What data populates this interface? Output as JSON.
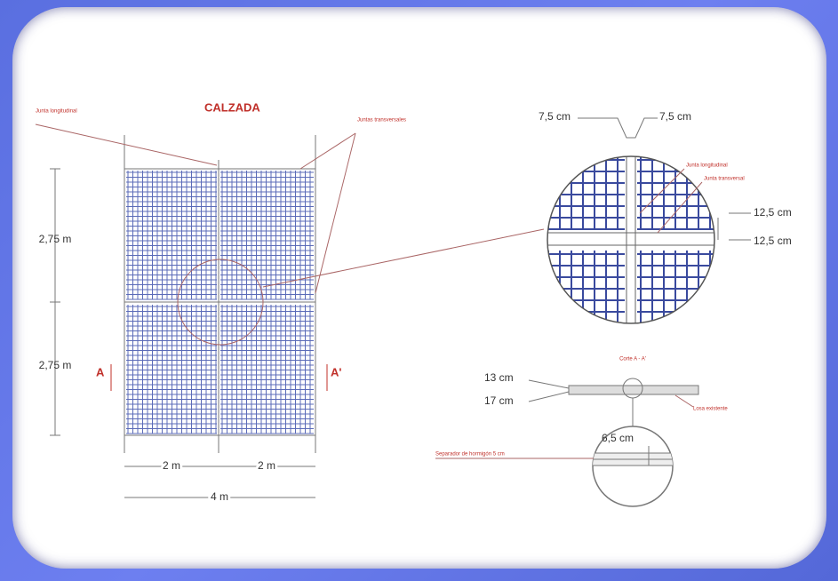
{
  "plan": {
    "title": "CALZADA",
    "label_joint_long": "Junta longitudinal",
    "label_joints_trans": "Juntas transversales",
    "dim_row_1": "2,75 m",
    "dim_row_2": "2,75 m",
    "section_mark_left": "A",
    "section_mark_right": "A'",
    "dim_col_1": "2 m",
    "dim_col_2": "2 m",
    "dim_total": "4 m"
  },
  "detail": {
    "gap_left": "7,5 cm",
    "gap_right": "7,5 cm",
    "label_joint_long": "Junta longitudinal",
    "label_joint_trans": "Junta transversal",
    "gap_top": "12,5 cm",
    "gap_bottom": "12,5 cm"
  },
  "section": {
    "title": "Corte A - A'",
    "thickness_1": "13 cm",
    "thickness_2": "17 cm",
    "label_existing_slab": "Losa existente",
    "dim_detail": "6,5 cm",
    "label_separator": "Separador de hormigón 5 cm"
  }
}
